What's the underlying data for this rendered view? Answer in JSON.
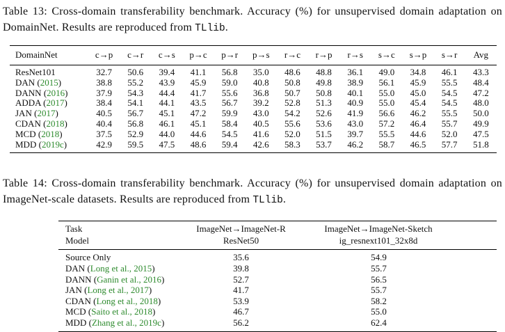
{
  "colors": {
    "citation_green": "#2e8b2e",
    "text": "#111111",
    "rule": "#000000",
    "background": "#ffffff"
  },
  "table13": {
    "caption": {
      "text_before": "Table 13: Cross-domain transferability benchmark. Accuracy (%) for unsupervised domain adaptation on DomainNet. Results are reproduced from ",
      "code": "TLlib",
      "text_after": "."
    },
    "columns": [
      "DomainNet",
      "c→p",
      "c→r",
      "c→s",
      "p→c",
      "p→r",
      "p→s",
      "r→c",
      "r→p",
      "r→s",
      "s→c",
      "s→p",
      "s→r",
      "Avg"
    ],
    "rows": [
      {
        "method": "ResNet101",
        "citation": "",
        "values": [
          "32.7",
          "50.6",
          "39.4",
          "41.1",
          "56.8",
          "35.0",
          "48.6",
          "48.8",
          "36.1",
          "49.0",
          "34.8",
          "46.1",
          "43.3"
        ]
      },
      {
        "method": "DAN",
        "citation": "2015",
        "values": [
          "38.8",
          "55.2",
          "43.9",
          "45.9",
          "59.0",
          "40.8",
          "50.8",
          "49.8",
          "38.9",
          "56.1",
          "45.9",
          "55.5",
          "48.4"
        ]
      },
      {
        "method": "DANN",
        "citation": "2016",
        "values": [
          "37.9",
          "54.3",
          "44.4",
          "41.7",
          "55.6",
          "36.8",
          "50.7",
          "50.8",
          "40.1",
          "55.0",
          "45.0",
          "54.5",
          "47.2"
        ]
      },
      {
        "method": "ADDA",
        "citation": "2017",
        "values": [
          "38.4",
          "54.1",
          "44.1",
          "43.5",
          "56.7",
          "39.2",
          "52.8",
          "51.3",
          "40.9",
          "55.0",
          "45.4",
          "54.5",
          "48.0"
        ]
      },
      {
        "method": "JAN",
        "citation": "2017",
        "values": [
          "40.5",
          "56.7",
          "45.1",
          "47.2",
          "59.9",
          "43.0",
          "54.2",
          "52.6",
          "41.9",
          "56.6",
          "46.2",
          "55.5",
          "50.0"
        ]
      },
      {
        "method": "CDAN",
        "citation": "2018",
        "values": [
          "40.4",
          "56.8",
          "46.1",
          "45.1",
          "58.4",
          "40.5",
          "55.6",
          "53.6",
          "43.0",
          "57.2",
          "46.4",
          "55.7",
          "49.9"
        ]
      },
      {
        "method": "MCD",
        "citation": "2018",
        "values": [
          "37.5",
          "52.9",
          "44.0",
          "44.6",
          "54.5",
          "41.6",
          "52.0",
          "51.5",
          "39.7",
          "55.5",
          "44.6",
          "52.0",
          "47.5"
        ]
      },
      {
        "method": "MDD",
        "citation": "2019c",
        "values": [
          "42.9",
          "59.5",
          "47.5",
          "48.6",
          "59.4",
          "42.6",
          "58.3",
          "53.7",
          "46.2",
          "58.7",
          "46.5",
          "57.7",
          "51.8"
        ]
      }
    ]
  },
  "table14": {
    "caption": {
      "text_before": "Table 14: Cross-domain transferability benchmark. Accuracy (%) for unsupervised domain adaptation on ImageNet-scale datasets. Results are reproduced from ",
      "code": "TLlib",
      "text_after": "."
    },
    "header": {
      "col1": [
        "Task",
        "Model"
      ],
      "col2": [
        "ImageNet→ImageNet-R",
        "ResNet50"
      ],
      "col3": [
        "ImageNet→ImageNet-Sketch",
        "ig_resnext101_32x8d"
      ]
    },
    "rows": [
      {
        "method": "Source Only",
        "citation": "",
        "values": [
          "35.6",
          "54.9"
        ]
      },
      {
        "method": "DAN",
        "citation": "Long et al., 2015",
        "values": [
          "39.8",
          "55.7"
        ]
      },
      {
        "method": "DANN",
        "citation": "Ganin et al., 2016",
        "values": [
          "52.7",
          "56.5"
        ]
      },
      {
        "method": "JAN",
        "citation": "Long et al., 2017",
        "values": [
          "41.7",
          "55.7"
        ]
      },
      {
        "method": "CDAN",
        "citation": "Long et al., 2018",
        "values": [
          "53.9",
          "58.2"
        ]
      },
      {
        "method": "MCD",
        "citation": "Saito et al., 2018",
        "values": [
          "46.7",
          "55.0"
        ]
      },
      {
        "method": "MDD",
        "citation": "Zhang et al., 2019c",
        "values": [
          "56.2",
          "62.4"
        ]
      }
    ]
  }
}
